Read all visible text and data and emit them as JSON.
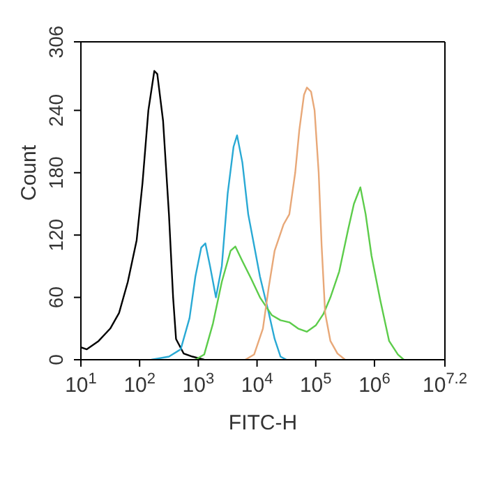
{
  "chart_data": {
    "type": "line",
    "xlabel": "FITC-H",
    "ylabel": "Count",
    "log": "x",
    "xlim": [
      10,
      15848932
    ],
    "xticks": [
      {
        "value": 10,
        "label": "10$^{1}$"
      },
      {
        "value": 100,
        "label": "10$^{2}$"
      },
      {
        "value": 1000,
        "label": "10$^{3}$"
      },
      {
        "value": 10000,
        "label": "10$^{4}$"
      },
      {
        "value": 100000,
        "label": "10$^{5}$"
      },
      {
        "value": 1000000,
        "label": "10$^{6}$"
      },
      {
        "value": 15848932,
        "label": "10$^{7.2}$"
      }
    ],
    "ylim": [
      0,
      306
    ],
    "yticks": [
      0,
      60,
      120,
      180,
      240,
      306
    ],
    "grid": false,
    "legend": false,
    "marker": "none",
    "line_style": "solid",
    "series": [
      {
        "color": "#000000",
        "x": [
          10,
          12.6,
          20,
          31.6,
          44.7,
          63,
          89,
          112,
          141,
          178,
          200,
          251,
          316,
          372,
          417,
          562,
          794,
          1259
        ],
        "values": [
          12,
          10,
          18,
          30,
          45,
          75,
          115,
          170,
          240,
          278,
          275,
          230,
          140,
          60,
          20,
          6,
          3,
          0
        ]
      },
      {
        "color": "#29a9d4",
        "x": [
          158,
          316,
          501,
          708,
          891,
          1122,
          1318,
          1585,
          1995,
          2512,
          3162,
          3981,
          4571,
          5623,
          7079,
          8913,
          11220,
          15850,
          19950,
          25120,
          31620
        ],
        "values": [
          0,
          3,
          10,
          40,
          80,
          108,
          112,
          90,
          60,
          90,
          160,
          205,
          216,
          190,
          140,
          110,
          80,
          45,
          20,
          3,
          0
        ]
      },
      {
        "color": "#5ccc4a",
        "x": [
          891,
          1259,
          1778,
          2512,
          3548,
          4266,
          5623,
          7943,
          11220,
          17780,
          25120,
          35480,
          50120,
          70790,
          100000,
          134900,
          177800,
          251200,
          354800,
          446700,
          575400,
          707900,
          891300,
          1259000,
          1778000,
          2512000,
          3162000
        ],
        "values": [
          0,
          5,
          35,
          75,
          105,
          109,
          95,
          78,
          60,
          43,
          38,
          36,
          30,
          27,
          33,
          44,
          60,
          85,
          125,
          150,
          166,
          140,
          100,
          57,
          18,
          5,
          0
        ]
      },
      {
        "color": "#e8a878",
        "x": [
          6310,
          8913,
          12590,
          15850,
          19950,
          28180,
          35480,
          44670,
          52480,
          63100,
          70790,
          83180,
          95500,
          112200,
          125900,
          144500,
          177800,
          234400,
          316200
        ],
        "values": [
          0,
          5,
          30,
          70,
          105,
          130,
          140,
          180,
          221,
          255,
          262,
          258,
          240,
          180,
          110,
          45,
          18,
          6,
          0
        ]
      }
    ]
  }
}
